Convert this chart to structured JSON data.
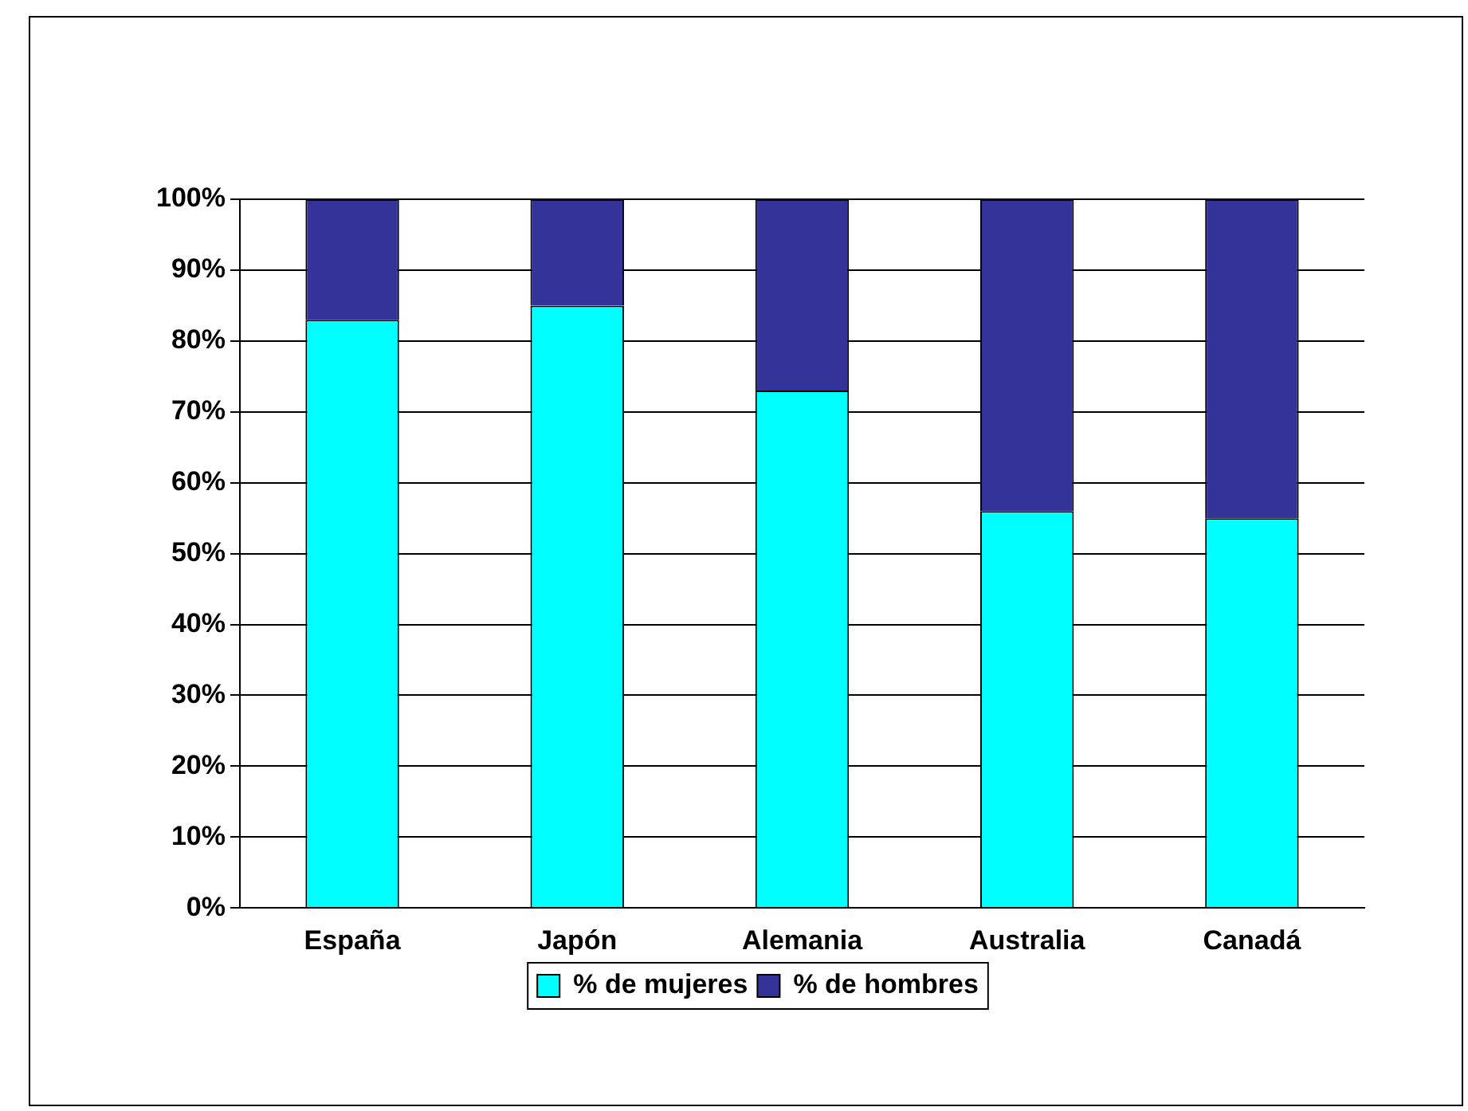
{
  "chart_data": {
    "type": "bar",
    "stacked": true,
    "categories": [
      "España",
      "Japón",
      "Alemania",
      "Australia",
      "Canadá"
    ],
    "series": [
      {
        "name": "% de mujeres",
        "color": "#00ffff",
        "values": [
          83,
          85,
          73,
          56,
          55
        ]
      },
      {
        "name": "% de hombres",
        "color": "#333399",
        "values": [
          17,
          15,
          27,
          44,
          45
        ]
      }
    ],
    "ylim": [
      0,
      100
    ],
    "yticks": [
      {
        "value": 0,
        "label": "0%"
      },
      {
        "value": 10,
        "label": "10%"
      },
      {
        "value": 20,
        "label": "20%"
      },
      {
        "value": 30,
        "label": "30%"
      },
      {
        "value": 40,
        "label": "40%"
      },
      {
        "value": 50,
        "label": "50%"
      },
      {
        "value": 60,
        "label": "60%"
      },
      {
        "value": 70,
        "label": "70%"
      },
      {
        "value": 80,
        "label": "80%"
      },
      {
        "value": 90,
        "label": "90%"
      },
      {
        "value": 100,
        "label": "100%"
      }
    ],
    "grid": "y",
    "legend": "bottom"
  }
}
